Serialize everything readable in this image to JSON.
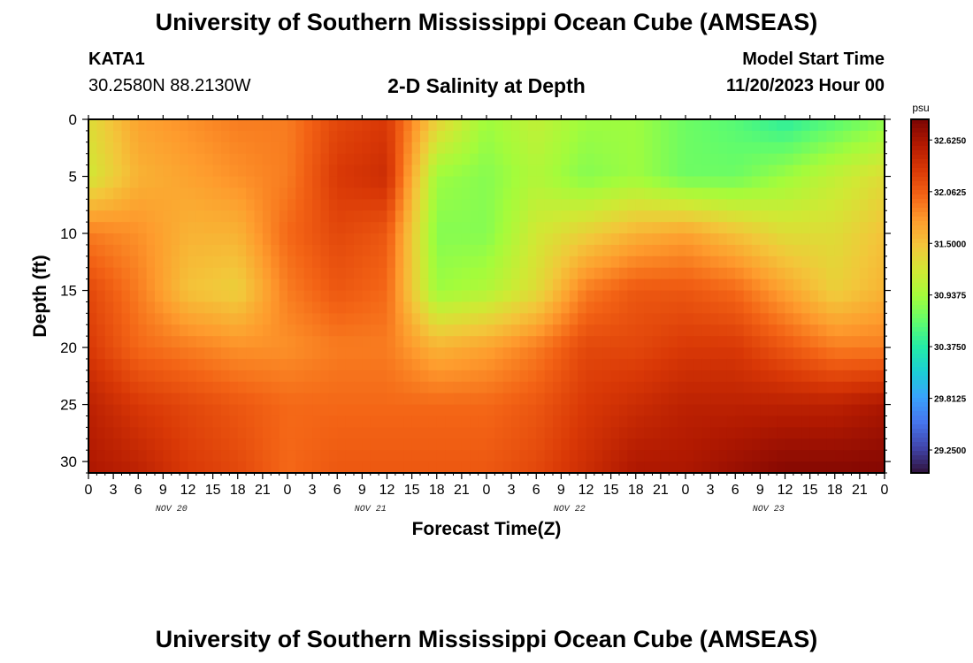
{
  "header": {
    "title": "University of Southern Mississippi Ocean Cube (AMSEAS)",
    "station_id": "KATA1",
    "station_coords": "30.2580N  88.2130W",
    "plot_title": "2-D Salinity at Depth",
    "start_label": "Model Start Time",
    "start_time": "11/20/2023 Hour 00"
  },
  "footer": {
    "title": "University of Southern Mississippi Ocean Cube (AMSEAS)"
  },
  "colors": {
    "palette": [
      "#30123b",
      "#4145ab",
      "#4675ed",
      "#39a2fc",
      "#1bcfd4",
      "#24eca6",
      "#61fc6c",
      "#a4fc3b",
      "#d1e834",
      "#f3c63a",
      "#fe9b2d",
      "#f36315",
      "#d93806",
      "#b11901",
      "#7a0403"
    ],
    "frame": "#000000"
  },
  "chart_data": {
    "type": "heatmap",
    "title": "2-D Salinity at Depth",
    "xlabel": "Forecast Time(Z)",
    "ylabel": "Depth (ft)",
    "x_tick_labels": [
      "0",
      "3",
      "6",
      "9",
      "12",
      "15",
      "18",
      "21",
      "0",
      "3",
      "6",
      "9",
      "12",
      "15",
      "18",
      "21",
      "0",
      "3",
      "6",
      "9",
      "12",
      "15",
      "18",
      "21",
      "0",
      "3",
      "6",
      "9",
      "12",
      "15",
      "18",
      "21",
      "0"
    ],
    "day_labels": [
      "NOV 20",
      "NOV 21",
      "NOV 22",
      "NOV 23"
    ],
    "y_ticks": [
      0,
      5,
      10,
      15,
      20,
      25,
      30
    ],
    "ylim": [
      0,
      31
    ],
    "xlim_hours": [
      0,
      96
    ],
    "colorbar": {
      "unit": "psu",
      "tick_labels": [
        "32.6250",
        "32.0625",
        "31.5000",
        "30.9375",
        "30.3750",
        "29.8125",
        "29.2500"
      ],
      "range": [
        29.0,
        32.85
      ]
    },
    "x_hours": [
      0,
      6,
      12,
      18,
      24,
      30,
      36,
      42,
      48,
      54,
      60,
      66,
      72,
      78,
      84,
      90,
      96
    ],
    "depths": [
      0,
      5,
      10,
      15,
      20,
      25,
      31
    ],
    "salinity": [
      [
        31.3,
        31.7,
        31.8,
        31.9,
        31.9,
        32.2,
        32.3,
        31.4,
        30.9,
        31.1,
        30.9,
        30.9,
        30.7,
        30.6,
        30.4,
        30.6,
        30.8
      ],
      [
        31.2,
        31.6,
        31.7,
        31.8,
        31.9,
        32.3,
        32.4,
        30.9,
        30.8,
        31.0,
        30.8,
        30.9,
        30.7,
        30.7,
        30.9,
        31.1,
        31.3
      ],
      [
        31.9,
        31.8,
        31.6,
        31.6,
        32.0,
        32.2,
        32.1,
        30.8,
        30.8,
        31.2,
        31.4,
        31.6,
        31.7,
        31.5,
        31.3,
        31.3,
        31.5
      ],
      [
        32.2,
        31.9,
        31.5,
        31.4,
        31.9,
        32.1,
        32.0,
        30.9,
        31.0,
        31.3,
        31.9,
        32.1,
        32.1,
        32.0,
        31.7,
        31.4,
        31.6
      ],
      [
        32.3,
        32.0,
        31.9,
        31.8,
        31.8,
        31.9,
        31.9,
        31.6,
        31.7,
        31.9,
        32.2,
        32.2,
        32.3,
        32.3,
        32.1,
        31.9,
        31.9
      ],
      [
        32.5,
        32.3,
        32.2,
        32.1,
        32.0,
        32.0,
        32.0,
        32.0,
        32.0,
        32.1,
        32.3,
        32.4,
        32.5,
        32.5,
        32.5,
        32.5,
        32.6
      ],
      [
        32.6,
        32.5,
        32.3,
        32.2,
        32.0,
        32.1,
        32.1,
        32.1,
        32.1,
        32.2,
        32.4,
        32.6,
        32.6,
        32.7,
        32.8,
        32.8,
        32.8
      ]
    ]
  }
}
